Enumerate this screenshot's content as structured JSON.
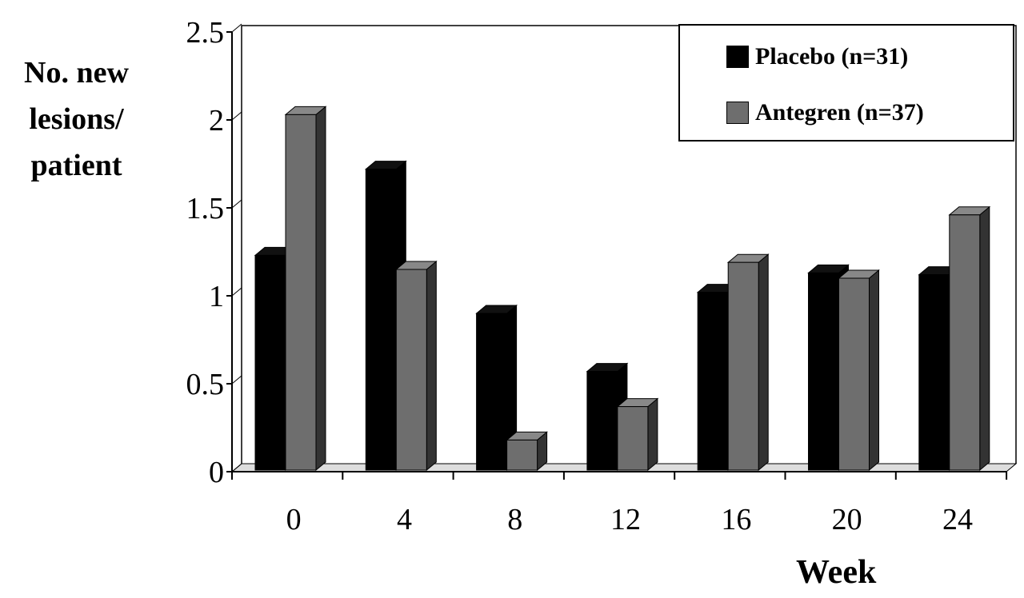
{
  "chart_data": {
    "type": "bar",
    "title": "",
    "xlabel": "Week",
    "ylabel": "No. new lesions/ patient",
    "ylabel_lines": [
      "No. new",
      "lesions/",
      "patient"
    ],
    "categories": [
      "0",
      "4",
      "8",
      "12",
      "16",
      "20",
      "24"
    ],
    "series": [
      {
        "name": "Placebo (n=31)",
        "color": "#000000",
        "values": [
          1.23,
          1.72,
          0.9,
          0.57,
          1.02,
          1.13,
          1.12
        ]
      },
      {
        "name": "Antegren (n=37)",
        "color": "#6e6e6e",
        "values": [
          2.03,
          1.15,
          0.18,
          0.37,
          1.19,
          1.1,
          1.46
        ]
      }
    ],
    "ylim": [
      0,
      2.5
    ],
    "yticks": [
      "0",
      "0.5",
      "1",
      "1.5",
      "2",
      "2.5"
    ],
    "grid": false,
    "legend_position": "top-right",
    "style": "3d-column"
  }
}
